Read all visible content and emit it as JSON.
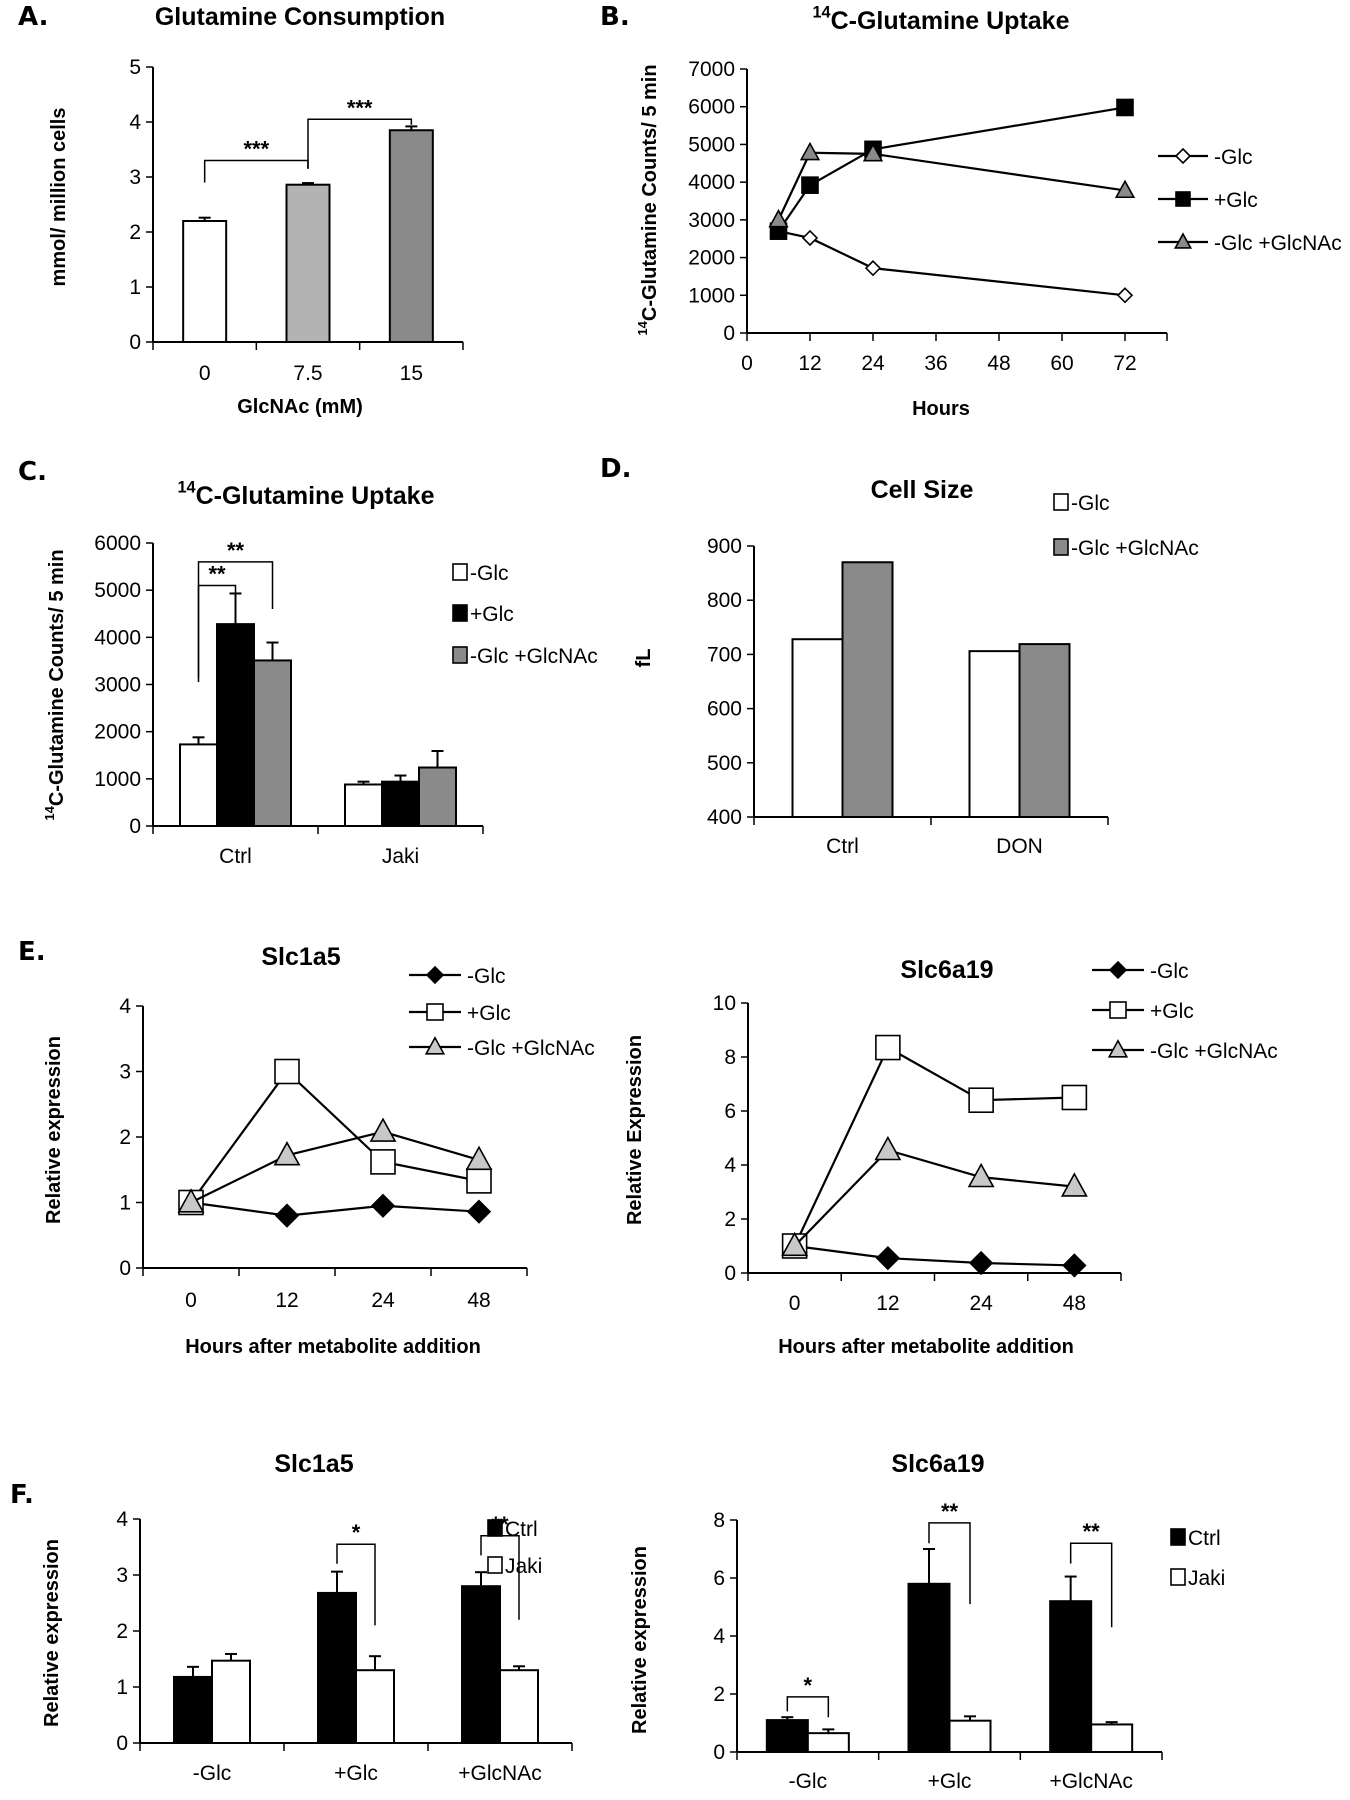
{
  "chart_data": [
    {
      "panel": "A.",
      "type": "bar",
      "title": "Glutamine Consumption",
      "xlabel": "GlcNAc (mM)",
      "ylabel": "mmol/ million cells",
      "categories": [
        "0",
        "7.5",
        "15"
      ],
      "ylim": [
        0,
        5
      ],
      "yticks": [
        0,
        1,
        2,
        3,
        4,
        5
      ],
      "series": [
        {
          "values": [
            2.2,
            2.86,
            3.85
          ],
          "errors": [
            0.06,
            0.03,
            0.07
          ],
          "colors": [
            "#ffffff",
            "#b3b3b3",
            "#8a8a8a"
          ]
        }
      ],
      "significance": [
        {
          "from": [
            0,
            0
          ],
          "to": [
            1,
            0
          ],
          "top": 3.3,
          "left_end": 2.9,
          "right_end": 3.15,
          "label": "***"
        },
        {
          "from": [
            1,
            0
          ],
          "to": [
            2,
            0
          ],
          "top": 4.05,
          "left_end": 3.15,
          "right_end": 3.95,
          "label": "***"
        }
      ]
    },
    {
      "panel": "B.",
      "type": "line",
      "title_sup": "14",
      "title": "C-Glutamine Uptake",
      "xlabel": "Hours",
      "ylabel_sup": "14",
      "ylabel": "C-Glutamine Counts/ 5 min",
      "xlim": [
        0,
        80
      ],
      "xticks": [
        0,
        12,
        24,
        36,
        48,
        60,
        72
      ],
      "ylim": [
        0,
        7000
      ],
      "yticks": [
        0,
        1000,
        2000,
        3000,
        4000,
        5000,
        6000,
        7000
      ],
      "legend_position": "right",
      "series": [
        {
          "name": "-Glc",
          "x": [
            6,
            12,
            24,
            72
          ],
          "values": [
            2700,
            2520,
            1720,
            1000
          ],
          "marker": "diamond",
          "fill": "#ffffff"
        },
        {
          "name": "+Glc",
          "x": [
            6,
            12,
            24,
            72
          ],
          "values": [
            2700,
            3920,
            4870,
            5980
          ],
          "marker": "square",
          "fill": "#000000"
        },
        {
          "name": "-Glc +GlcNAc",
          "x": [
            6,
            12,
            24,
            72
          ],
          "values": [
            3000,
            4780,
            4750,
            3780
          ],
          "marker": "triangle",
          "fill": "#8a8a8a"
        }
      ]
    },
    {
      "panel": "C.",
      "type": "bar",
      "title_sup": "14",
      "title": "C-Glutamine Uptake",
      "ylabel_sup": "14",
      "ylabel": "C-Glutamine Counts/ 5 min",
      "categories": [
        "Ctrl",
        "Jaki"
      ],
      "ylim": [
        0,
        6000
      ],
      "yticks": [
        0,
        1000,
        2000,
        3000,
        4000,
        5000,
        6000
      ],
      "legend_position": "right",
      "series": [
        {
          "name": "-Glc",
          "values": [
            1730,
            880
          ],
          "errors": [
            150,
            60
          ],
          "color": "#ffffff"
        },
        {
          "name": "+Glc",
          "values": [
            4280,
            940
          ],
          "errors": [
            650,
            130
          ],
          "color": "#000000"
        },
        {
          "name": "-Glc +GlcNAc",
          "values": [
            3510,
            1240
          ],
          "errors": [
            380,
            350
          ],
          "color": "#8a8a8a"
        }
      ],
      "significance": [
        {
          "from": [
            0,
            0
          ],
          "to": [
            0,
            1
          ],
          "top": 5100,
          "left_end": 3050,
          "right_end": 4800,
          "label": "**"
        },
        {
          "from": [
            0,
            0
          ],
          "to": [
            0,
            2
          ],
          "top": 5600,
          "left_end": 3150,
          "right_end": 4600,
          "label": "**"
        }
      ]
    },
    {
      "panel": "D.",
      "type": "bar",
      "title": "Cell Size",
      "ylabel": "fL",
      "categories": [
        "Ctrl",
        "DON"
      ],
      "ylim": [
        400,
        900
      ],
      "yticks": [
        400,
        500,
        600,
        700,
        800,
        900
      ],
      "legend_position": "top-right",
      "series": [
        {
          "name": "-Glc",
          "values": [
            728,
            706
          ],
          "color": "#ffffff"
        },
        {
          "name": "-Glc +GlcNAc",
          "values": [
            870,
            719
          ],
          "color": "#8a8a8a"
        }
      ]
    },
    {
      "panel": "E.",
      "type": "line",
      "title": "Slc1a5",
      "xlabel": "Hours after metabolite addition",
      "ylabel": "Relative expression",
      "categories": [
        "0",
        "12",
        "24",
        "48"
      ],
      "ylim": [
        0,
        4
      ],
      "yticks": [
        0,
        1,
        2,
        3,
        4
      ],
      "legend_position": "top-right",
      "series": [
        {
          "name": "-Glc",
          "values": [
            1.0,
            0.8,
            0.95,
            0.86
          ],
          "marker": "diamond",
          "fill": "#000000"
        },
        {
          "name": "+Glc",
          "values": [
            1.0,
            3.0,
            1.62,
            1.33
          ],
          "marker": "square",
          "fill": "#ffffff"
        },
        {
          "name": "-Glc +GlcNAc",
          "values": [
            1.0,
            1.72,
            2.08,
            1.65
          ],
          "marker": "triangle",
          "fill": "#c8c8c8"
        }
      ]
    },
    {
      "panel": "",
      "type": "line",
      "title": "Slc6a19",
      "xlabel": "Hours after metabolite addition",
      "ylabel": "Relative Expression",
      "categories": [
        "0",
        "12",
        "24",
        "48"
      ],
      "ylim": [
        0,
        10
      ],
      "yticks": [
        0,
        2,
        4,
        6,
        8,
        10
      ],
      "legend_position": "top-right",
      "series": [
        {
          "name": "-Glc",
          "values": [
            1.0,
            0.55,
            0.37,
            0.28
          ],
          "marker": "diamond",
          "fill": "#000000"
        },
        {
          "name": "+Glc",
          "values": [
            1.0,
            8.35,
            6.4,
            6.5
          ],
          "marker": "square",
          "fill": "#ffffff"
        },
        {
          "name": "-Glc +GlcNAc",
          "values": [
            1.0,
            4.55,
            3.55,
            3.2
          ],
          "marker": "triangle",
          "fill": "#c8c8c8"
        }
      ]
    },
    {
      "panel": "F.",
      "type": "bar",
      "title": "Slc1a5",
      "ylabel": "Relative expression",
      "categories": [
        "-Glc",
        "+Glc",
        "+GlcNAc"
      ],
      "ylim": [
        0,
        4
      ],
      "yticks": [
        0,
        1,
        2,
        3,
        4
      ],
      "legend_position": "top-right",
      "series": [
        {
          "name": "Ctrl",
          "values": [
            1.18,
            2.68,
            2.8
          ],
          "errors": [
            0.18,
            0.38,
            0.25
          ],
          "color": "#000000"
        },
        {
          "name": "Jaki",
          "values": [
            1.47,
            1.3,
            1.3
          ],
          "errors": [
            0.12,
            0.25,
            0.07
          ],
          "color": "#ffffff"
        }
      ],
      "significance": [
        {
          "from": [
            1,
            0
          ],
          "to": [
            1,
            1
          ],
          "top": 3.55,
          "left_end": 3.2,
          "right_end": 2.1,
          "label": "*"
        },
        {
          "from": [
            2,
            0
          ],
          "to": [
            2,
            1
          ],
          "top": 3.7,
          "left_end": 3.35,
          "right_end": 2.2,
          "label": "**"
        }
      ]
    },
    {
      "panel": "",
      "type": "bar",
      "title": "Slc6a19",
      "ylabel": "Relative expression",
      "categories": [
        "-Glc",
        "+Glc",
        "+GlcNAc"
      ],
      "ylim": [
        0,
        8
      ],
      "yticks": [
        0,
        2,
        4,
        6,
        8
      ],
      "legend_position": "top-right",
      "series": [
        {
          "name": "Ctrl",
          "values": [
            1.1,
            5.8,
            5.2
          ],
          "errors": [
            0.1,
            1.2,
            0.85
          ],
          "color": "#000000"
        },
        {
          "name": "Jaki",
          "values": [
            0.65,
            1.08,
            0.95
          ],
          "errors": [
            0.13,
            0.15,
            0.08
          ],
          "color": "#ffffff"
        }
      ],
      "significance": [
        {
          "from": [
            0,
            0
          ],
          "to": [
            0,
            1
          ],
          "top": 1.9,
          "left_end": 1.4,
          "right_end": 1.2,
          "label": "*"
        },
        {
          "from": [
            1,
            0
          ],
          "to": [
            1,
            1
          ],
          "top": 7.9,
          "left_end": 7.2,
          "right_end": 5.1,
          "label": "**"
        },
        {
          "from": [
            2,
            0
          ],
          "to": [
            2,
            1
          ],
          "top": 7.2,
          "left_end": 6.5,
          "right_end": 4.3,
          "label": "**"
        }
      ]
    }
  ]
}
